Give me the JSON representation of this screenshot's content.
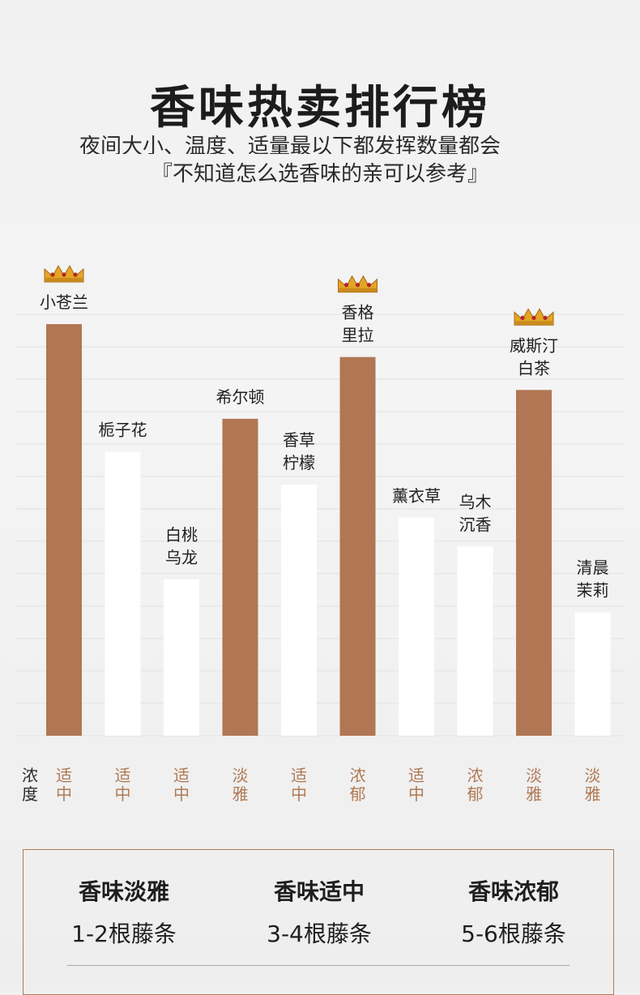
{
  "header": {
    "title": "香味热卖排行榜",
    "subtitle": "『不知道怎么选香味的亲可以参考』"
  },
  "colors": {
    "highlight": "#b17653",
    "normal": "#ffffff",
    "gridline": "#e2e2e2",
    "label_highlight": "#b07a55",
    "crown": "#e3a623"
  },
  "chart_data": {
    "type": "bar",
    "categories": [
      "小苍兰",
      "栀子花",
      "白桃乌龙",
      "希尔顿",
      "香草柠檬",
      "香格里拉",
      "薰衣草",
      "乌木沉香",
      "威斯汀白茶",
      "清晨茉莉"
    ],
    "label_lines": [
      [
        "小苍兰"
      ],
      [
        "栀子花"
      ],
      [
        "白桃",
        "乌龙"
      ],
      [
        "希尔顿"
      ],
      [
        "香草",
        "柠檬"
      ],
      [
        "香格",
        "里拉"
      ],
      [
        "薰衣草"
      ],
      [
        "乌木",
        "沉香"
      ],
      [
        "威斯汀",
        "白茶"
      ],
      [
        "清晨",
        "茉莉"
      ]
    ],
    "values": [
      100,
      69,
      38,
      77,
      61,
      92,
      53,
      46,
      84,
      30
    ],
    "highlighted": [
      true,
      false,
      false,
      true,
      false,
      true,
      false,
      false,
      true,
      false
    ],
    "crowned": [
      true,
      false,
      false,
      false,
      false,
      true,
      false,
      false,
      true,
      false
    ],
    "ylim": [
      0,
      100
    ],
    "grid": true,
    "density_label": [
      "浓",
      "度"
    ],
    "density": [
      [
        "适",
        "中"
      ],
      [
        "适",
        "中"
      ],
      [
        "适",
        "中"
      ],
      [
        "淡",
        "雅"
      ],
      [
        "适",
        "中"
      ],
      [
        "浓",
        "郁"
      ],
      [
        "适",
        "中"
      ],
      [
        "浓",
        "郁"
      ],
      [
        "淡",
        "雅"
      ],
      [
        "淡",
        "雅"
      ]
    ]
  },
  "legend": [
    {
      "title": "香味淡雅",
      "value": "1-2根藤条"
    },
    {
      "title": "香味适中",
      "value": "3-4根藤条"
    },
    {
      "title": "香味浓郁",
      "value": "5-6根藤条"
    }
  ],
  "footer_cut_text": "夜间大小、温度、适量最以下都发挥数量都会"
}
